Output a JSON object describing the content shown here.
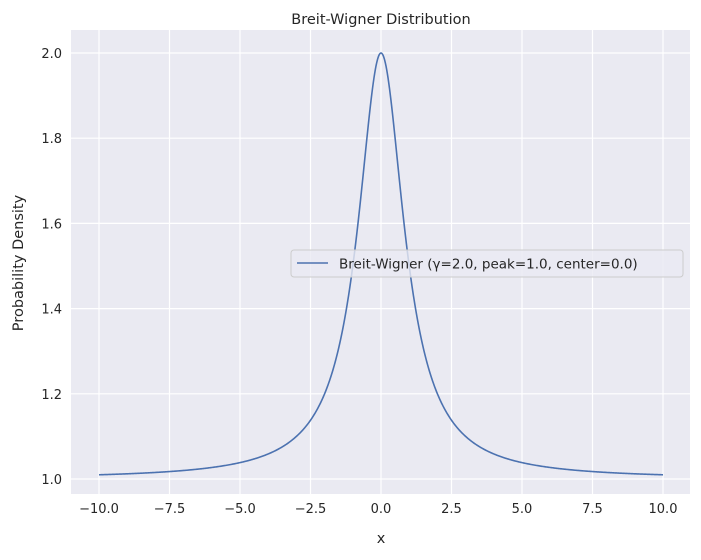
{
  "chart_data": {
    "type": "line",
    "title": "Breit-Wigner Distribution",
    "xlabel": "x",
    "ylabel": "Probability Density",
    "xlim": [
      -11,
      11
    ],
    "ylim": [
      0.97,
      2.05
    ],
    "xticks": [
      -10,
      -7.5,
      -5,
      -2.5,
      0,
      2.5,
      5,
      7.5,
      10
    ],
    "xtick_labels": [
      "−10.0",
      "−7.5",
      "−5.0",
      "−2.5",
      "0.0",
      "2.5",
      "5.0",
      "7.5",
      "10.0"
    ],
    "yticks": [
      1.0,
      1.2,
      1.4,
      1.6,
      1.8,
      2.0
    ],
    "ytick_labels": [
      "1.0",
      "1.2",
      "1.4",
      "1.6",
      "1.8",
      "2.0"
    ],
    "grid": true,
    "legend_position": "center-right",
    "series": [
      {
        "name": "Breit-Wigner (γ=2.0, peak=1.0, center=0.0)",
        "color": "#4c72b0",
        "params": {
          "gamma": 2.0,
          "peak": 1.0,
          "center": 0.0,
          "baseline": 1.0
        },
        "x": [
          -10,
          -9,
          -8,
          -7,
          -6,
          -5,
          -4,
          -3,
          -2,
          -1,
          0,
          1,
          2,
          3,
          4,
          5,
          6,
          7,
          8,
          9,
          10
        ],
        "y": [
          1.0099,
          1.0122,
          1.0154,
          1.02,
          1.027,
          1.0385,
          1.0588,
          1.1,
          1.2,
          1.5,
          2.0,
          1.5,
          1.2,
          1.1,
          1.0588,
          1.0385,
          1.027,
          1.02,
          1.0154,
          1.0122,
          1.0099
        ]
      }
    ]
  },
  "colors": {
    "axes_bg": "#eaeaf2",
    "grid": "#ffffff"
  }
}
